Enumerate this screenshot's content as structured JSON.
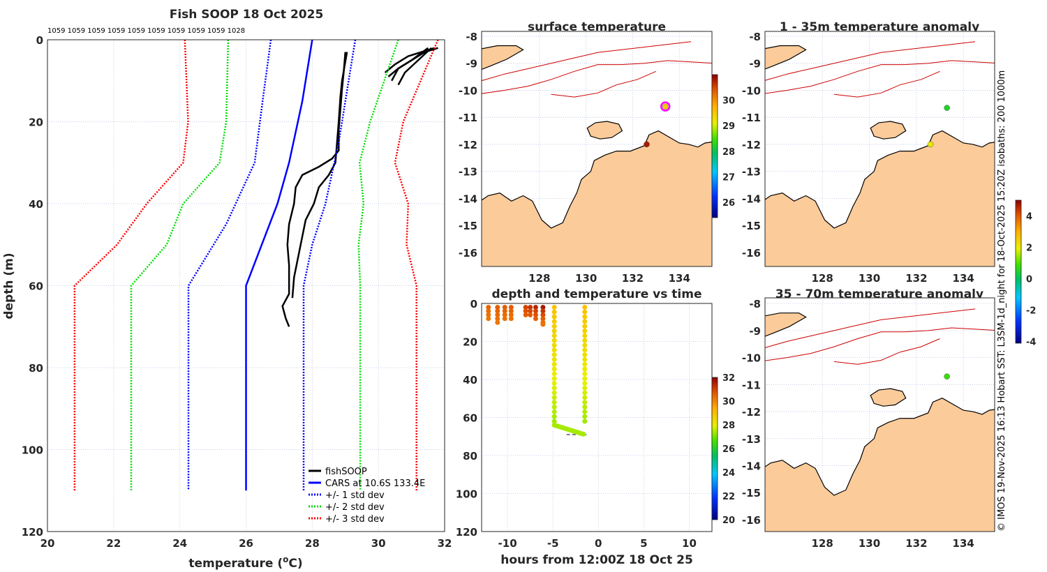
{
  "chart_data": [
    {
      "type": "line",
      "title": "Fish SOOP 18 Oct 2025",
      "xlabel": "temperature (oC)",
      "ylabel": "depth (m)",
      "xlim": [
        20,
        32
      ],
      "ylim": [
        120,
        0
      ],
      "xticks": [
        20,
        22,
        24,
        26,
        28,
        30,
        32
      ],
      "yticks": [
        0,
        20,
        40,
        60,
        80,
        100,
        120
      ],
      "grid": true,
      "legend_placement": "bottom-right",
      "top_annotation": "1059 1059 1059 1059 1059 1059 1059 1059 1059 1028",
      "legend": [
        "fishSOOP",
        "CARS at 10.6S 133.4E",
        "+/- 1 std dev",
        "+/- 2 std dev",
        "+/- 3 std dev"
      ],
      "series": [
        {
          "name": "fishSOOP",
          "color": "#000000",
          "style": "solid",
          "profiles": [
            {
              "temp": [
                29.0,
                28.95,
                28.9,
                28.85,
                28.8,
                28.8,
                28.6,
                28.2,
                27.7,
                27.5,
                27.45,
                27.3,
                27.25,
                27.3,
                27.3,
                27.1,
                27.2,
                27.3
              ],
              "depth": [
                3,
                8,
                12,
                17,
                22,
                27,
                29,
                31,
                33,
                36,
                40,
                45,
                50,
                55,
                62,
                65,
                68,
                70
              ]
            },
            {
              "temp": [
                29.05,
                28.9,
                28.85,
                28.8,
                28.75,
                28.7,
                28.5,
                28.2,
                28.05,
                27.8,
                27.7,
                27.6,
                27.45,
                27.4
              ],
              "depth": [
                3,
                10,
                14,
                20,
                25,
                30,
                33,
                36,
                40,
                44,
                48,
                52,
                58,
                63
              ]
            },
            {
              "temp": [
                30.2,
                30.5,
                30.9,
                31.3,
                31.7
              ],
              "depth": [
                8,
                6,
                4,
                3,
                2
              ]
            },
            {
              "temp": [
                30.4,
                30.6,
                31.0,
                31.5
              ],
              "depth": [
                10,
                7,
                5,
                2
              ]
            },
            {
              "temp": [
                30.6,
                30.8,
                31.2,
                31.6
              ],
              "depth": [
                11,
                8,
                5,
                2
              ]
            },
            {
              "temp": [
                30.3,
                30.6,
                31.0,
                31.4,
                31.8
              ],
              "depth": [
                9,
                7,
                5,
                3,
                2
              ]
            }
          ]
        },
        {
          "name": "CARS at 10.6S 133.4E",
          "color": "#0000ff",
          "style": "solid",
          "temp": [
            28.0,
            27.7,
            27.3,
            26.95,
            26.0,
            26.0
          ],
          "depth": [
            0,
            15,
            30,
            40,
            60,
            110
          ]
        },
        {
          "name": "+1 std dev",
          "color": "#0000ff",
          "style": "dotted",
          "temp": [
            29.3,
            29.0,
            28.8,
            28.4,
            28.0,
            27.74,
            27.74
          ],
          "depth": [
            0,
            15,
            25,
            40,
            50,
            60,
            110
          ]
        },
        {
          "name": "-1 std dev",
          "color": "#0000ff",
          "style": "dotted",
          "temp": [
            26.75,
            26.5,
            26.26,
            25.4,
            24.26,
            24.26
          ],
          "depth": [
            0,
            15,
            30,
            45,
            60,
            110
          ]
        },
        {
          "name": "+2 std dev",
          "color": "#00dd00",
          "style": "dotted",
          "temp": [
            30.6,
            29.75,
            29.43,
            29.55,
            29.4,
            29.45,
            29.45
          ],
          "depth": [
            0,
            20,
            30,
            40,
            50,
            60,
            110
          ]
        },
        {
          "name": "-2 std dev",
          "color": "#00dd00",
          "style": "dotted",
          "temp": [
            25.46,
            25.4,
            25.2,
            24.1,
            23.6,
            22.53,
            22.53
          ],
          "depth": [
            0,
            20,
            30,
            40,
            50,
            60,
            110
          ]
        },
        {
          "name": "+3 std dev",
          "color": "#ff0000",
          "style": "dotted",
          "temp": [
            31.8,
            30.75,
            30.5,
            30.9,
            30.85,
            31.15,
            31.15
          ],
          "depth": [
            0,
            20,
            30,
            40,
            50,
            60,
            110
          ]
        },
        {
          "name": "-3 std dev",
          "color": "#ff0000",
          "style": "dotted",
          "temp": [
            24.15,
            24.25,
            24.1,
            23.0,
            22.1,
            20.82,
            20.82
          ],
          "depth": [
            0,
            20,
            30,
            40,
            50,
            60,
            110
          ]
        }
      ]
    },
    {
      "type": "map",
      "title": "surface temperature",
      "xticks": [
        128,
        130,
        132,
        134
      ],
      "yticks": [
        -8,
        -9,
        -10,
        -11,
        -12,
        -13,
        -14,
        -15,
        -16
      ],
      "colorbar": {
        "range": [
          25.4,
          31
        ],
        "ticks": [
          26,
          27,
          28,
          29,
          30
        ]
      },
      "points": [
        {
          "lon": 133.4,
          "lat": -10.6,
          "value": 29.5,
          "highlight": true
        },
        {
          "lon": 132.6,
          "lat": -12.0,
          "value": 30.8
        }
      ]
    },
    {
      "type": "scatter",
      "title": "depth and temperature vs time",
      "xlabel": "hours from 12:00Z 18 Oct 25",
      "xlim": [
        -12.85,
        12.5
      ],
      "ylim": [
        120,
        0
      ],
      "xticks": [
        -10,
        -5,
        0,
        5,
        10
      ],
      "yticks": [
        0,
        20,
        40,
        60,
        80,
        100,
        120
      ],
      "colorbar": {
        "range": [
          20,
          32
        ],
        "ticks": [
          20,
          22,
          24,
          26,
          28,
          30,
          32
        ]
      },
      "casts": [
        {
          "hours": -12.1,
          "depths": [
            2,
            4,
            6,
            8
          ],
          "temps": [
            30.5,
            30.4,
            30.3,
            30.2
          ]
        },
        {
          "hours": -11.1,
          "depths": [
            2,
            4,
            6,
            8,
            10
          ],
          "temps": [
            30.6,
            30.5,
            30.4,
            30.3,
            30.2
          ]
        },
        {
          "hours": -10.3,
          "depths": [
            2,
            4,
            6,
            8
          ],
          "temps": [
            30.6,
            30.5,
            30.4,
            30.3
          ]
        },
        {
          "hours": -9.6,
          "depths": [
            2,
            4,
            6,
            8
          ],
          "temps": [
            30.6,
            30.5,
            30.4,
            30.3
          ]
        },
        {
          "hours": -8.0,
          "depths": [
            2,
            4,
            6
          ],
          "temps": [
            31.0,
            30.8,
            30.6
          ]
        },
        {
          "hours": -7.5,
          "depths": [
            2,
            4,
            6
          ],
          "temps": [
            31.2,
            30.9,
            30.7
          ]
        },
        {
          "hours": -6.9,
          "depths": [
            2,
            4,
            6,
            8
          ],
          "temps": [
            31.4,
            31.0,
            30.8,
            30.6
          ]
        },
        {
          "hours": -6.1,
          "depths": [
            2,
            4,
            6,
            8,
            10,
            11
          ],
          "temps": [
            31.6,
            31.2,
            30.9,
            30.6,
            30.4,
            30.3
          ]
        }
      ],
      "long_cast": {
        "hours_down": -4.85,
        "hours_up": -1.5,
        "max_depth": 69,
        "temp_surface": 29.0,
        "temp_bottom": 27.3
      }
    },
    {
      "type": "map",
      "title": "1 - 35m temperature anomaly",
      "xticks": [
        128,
        130,
        132,
        134
      ],
      "yticks": [
        -8,
        -9,
        -10,
        -11,
        -12,
        -13,
        -14,
        -15,
        -16
      ],
      "colorbar": {
        "range": [
          -4.1,
          5.0
        ],
        "ticks": [
          -4,
          -2,
          0,
          2,
          4
        ]
      },
      "points": [
        {
          "lon": 133.3,
          "lat": -10.65,
          "value": 0.5
        },
        {
          "lon": 132.6,
          "lat": -12.0,
          "value": 2.0
        }
      ]
    },
    {
      "type": "map",
      "title": "35 - 70m temperature anomaly",
      "xticks": [
        128,
        130,
        132,
        134
      ],
      "yticks": [
        -8,
        -9,
        -10,
        -11,
        -12,
        -13,
        -14,
        -15,
        -16
      ],
      "points": [
        {
          "lon": 133.3,
          "lat": -10.7,
          "value": 0.8
        }
      ]
    }
  ],
  "credit": "© IMOS 19-Nov-2025 16:13 Hobart SST: L3SM-1d_night for 18-Oct-2025 15:20Z isobaths: 200  1000m",
  "labels": {
    "p1_title": "Fish SOOP 18 Oct 2025",
    "p1_xlabel": "temperature (",
    "p1_xlabel_sup": "o",
    "p1_xlabel_end": "C)",
    "p1_ylabel": "depth (m)",
    "p2_title": "surface temperature",
    "p3_title": "depth and temperature vs time",
    "p3_xlabel": "hours from 12:00Z 18 Oct 25",
    "p4_title": "1 - 35m temperature anomaly",
    "p5_title": "35 - 70m temperature anomaly"
  },
  "colors": {
    "land": "#fbcb9a",
    "contour": "#cc0000",
    "grid": "#b8c0e0"
  }
}
